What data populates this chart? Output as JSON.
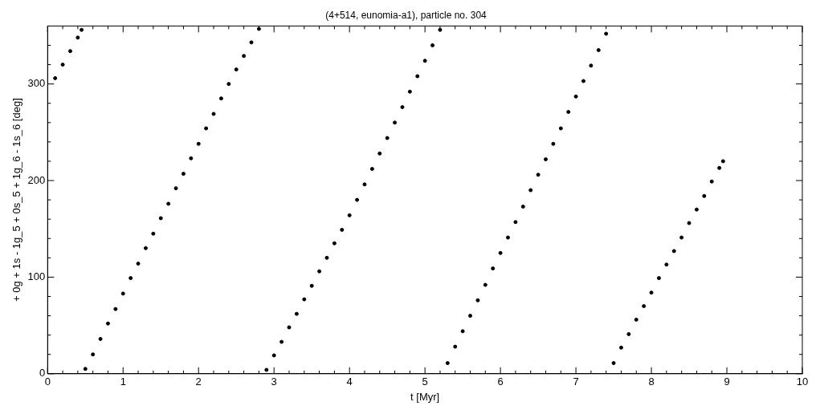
{
  "chart_data": {
    "type": "scatter",
    "title": "(4+514, eunomia-a1), particle no. 304",
    "xlabel": "t [Myr]",
    "ylabel": "+ 0g + 1s - 1g_5 + 0s_5 + 1g_6 - 1s_6 [deg]",
    "xlim": [
      0,
      10
    ],
    "ylim": [
      0,
      360
    ],
    "xticks": [
      0,
      {
        "value": 0.2,
        "label": null
      },
      {
        "value": 0.4,
        "label": null
      },
      {
        "value": 0.6,
        "label": null
      },
      {
        "value": 0.8,
        "label": null
      },
      1,
      {
        "value": 1.2,
        "label": null
      },
      {
        "value": 1.4,
        "label": null
      },
      {
        "value": 1.6,
        "label": null
      },
      {
        "value": 1.8,
        "label": null
      },
      2,
      {
        "value": 2.2,
        "label": null
      },
      {
        "value": 2.4,
        "label": null
      },
      {
        "value": 2.6,
        "label": null
      },
      {
        "value": 2.8,
        "label": null
      },
      3,
      {
        "value": 3.2,
        "label": null
      },
      {
        "value": 3.4,
        "label": null
      },
      {
        "value": 3.6,
        "label": null
      },
      {
        "value": 3.8,
        "label": null
      },
      4,
      {
        "value": 4.2,
        "label": null
      },
      {
        "value": 4.4,
        "label": null
      },
      {
        "value": 4.6,
        "label": null
      },
      {
        "value": 4.8,
        "label": null
      },
      5,
      {
        "value": 5.2,
        "label": null
      },
      {
        "value": 5.4,
        "label": null
      },
      {
        "value": 5.6,
        "label": null
      },
      {
        "value": 5.8,
        "label": null
      },
      6,
      {
        "value": 6.2,
        "label": null
      },
      {
        "value": 6.4,
        "label": null
      },
      {
        "value": 6.6,
        "label": null
      },
      {
        "value": 6.8,
        "label": null
      },
      7,
      {
        "value": 7.2,
        "label": null
      },
      {
        "value": 7.4,
        "label": null
      },
      {
        "value": 7.6,
        "label": null
      },
      {
        "value": 7.8,
        "label": null
      },
      8,
      {
        "value": 8.2,
        "label": null
      },
      {
        "value": 8.4,
        "label": null
      },
      {
        "value": 8.6,
        "label": null
      },
      {
        "value": 8.8,
        "label": null
      },
      9,
      {
        "value": 9.2,
        "label": null
      },
      {
        "value": 9.4,
        "label": null
      },
      {
        "value": 9.6,
        "label": null
      },
      {
        "value": 9.8,
        "label": null
      },
      10
    ],
    "yticks": [
      0,
      {
        "value": 20,
        "label": null
      },
      {
        "value": 40,
        "label": null
      },
      {
        "value": 60,
        "label": null
      },
      {
        "value": 80,
        "label": null
      },
      100,
      {
        "value": 120,
        "label": null
      },
      {
        "value": 140,
        "label": null
      },
      {
        "value": 160,
        "label": null
      },
      {
        "value": 180,
        "label": null
      },
      200,
      {
        "value": 220,
        "label": null
      },
      {
        "value": 240,
        "label": null
      },
      {
        "value": 260,
        "label": null
      },
      {
        "value": 280,
        "label": null
      },
      300,
      {
        "value": 320,
        "label": null
      },
      {
        "value": 340,
        "label": null
      }
    ],
    "grid": false,
    "legend": false,
    "marker": "circle",
    "series": [
      {
        "color": "#000000",
        "x": [
          0.1,
          0.2,
          0.3,
          0.4,
          0.45,
          0.5,
          0.6,
          0.7,
          0.8,
          0.9,
          1.0,
          1.1,
          1.2,
          1.3,
          1.4,
          1.5,
          1.6,
          1.7,
          1.8,
          1.9,
          2.0,
          2.1,
          2.2,
          2.3,
          2.4,
          2.5,
          2.6,
          2.7,
          2.8,
          2.9,
          3.0,
          3.1,
          3.2,
          3.3,
          3.4,
          3.5,
          3.6,
          3.7,
          3.8,
          3.9,
          4.0,
          4.1,
          4.2,
          4.3,
          4.4,
          4.5,
          4.6,
          4.7,
          4.8,
          4.9,
          5.0,
          5.1,
          5.2,
          5.3,
          5.4,
          5.5,
          5.6,
          5.7,
          5.8,
          5.9,
          6.0,
          6.1,
          6.2,
          6.3,
          6.4,
          6.5,
          6.6,
          6.7,
          6.8,
          6.9,
          7.0,
          7.1,
          7.2,
          7.3,
          7.4,
          7.5,
          7.6,
          7.7,
          7.8,
          7.9,
          8.0,
          8.1,
          8.2,
          8.3,
          8.4,
          8.5,
          8.6,
          8.7,
          8.8,
          8.9,
          8.95
        ],
        "values": [
          306,
          320,
          334,
          348,
          356,
          5,
          20,
          36,
          52,
          67,
          83,
          99,
          114,
          130,
          145,
          161,
          176,
          192,
          207,
          223,
          238,
          254,
          269,
          285,
          300,
          315,
          329,
          343,
          357,
          4,
          19,
          33,
          48,
          62,
          77,
          91,
          106,
          120,
          135,
          149,
          164,
          180,
          196,
          212,
          228,
          244,
          260,
          276,
          292,
          308,
          324,
          340,
          356,
          11,
          28,
          44,
          60,
          76,
          92,
          109,
          125,
          141,
          157,
          173,
          190,
          206,
          222,
          238,
          254,
          271,
          287,
          303,
          319,
          335,
          352,
          11,
          27,
          41,
          56,
          70,
          84,
          99,
          113,
          127,
          141,
          156,
          170,
          184,
          199,
          213,
          220
        ]
      }
    ]
  }
}
